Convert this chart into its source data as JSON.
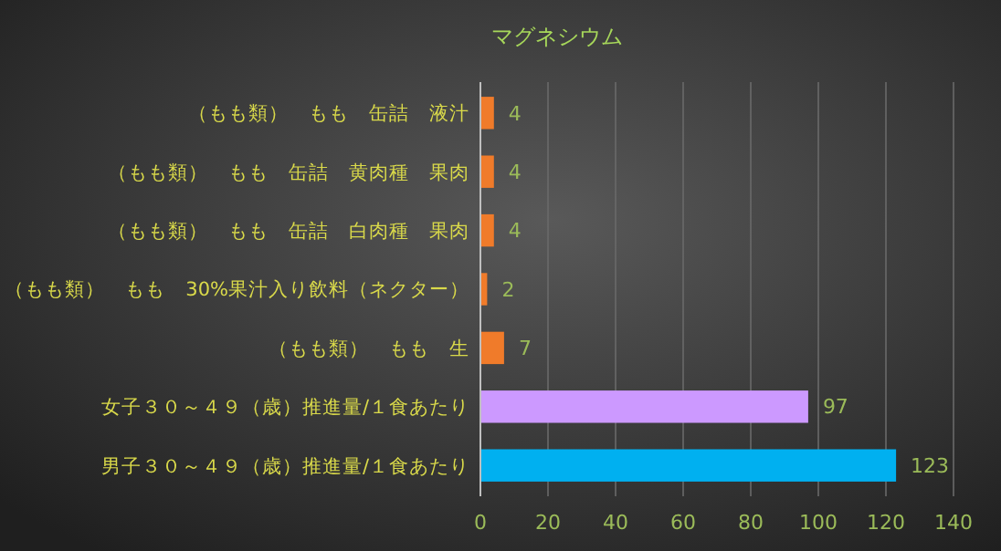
{
  "chart_data": {
    "type": "bar",
    "orientation": "horizontal",
    "title": "マグネシウム",
    "categories": [
      "（もも類）　もも　缶詰　液汁",
      "（もも類）　もも　缶詰　黄肉種　果肉",
      "（もも類）　もも　缶詰　白肉種　果肉",
      "（もも類）　もも　30%果汁入り飲料（ネクター）",
      "（もも類）　もも　生",
      "女子３０～４９（歳）推進量/１食あたり",
      "男子３０～４９（歳）推進量/１食あたり"
    ],
    "values": [
      4,
      4,
      4,
      2,
      7,
      97,
      123
    ],
    "colors": [
      "#f07b2a",
      "#f07b2a",
      "#f07b2a",
      "#f07b2a",
      "#f07b2a",
      "#cc99ff",
      "#00b0f0"
    ],
    "xlim": [
      0,
      140
    ],
    "xticks": [
      0,
      20,
      40,
      60,
      80,
      100,
      120,
      140
    ],
    "grid": "x",
    "data_labels": true
  }
}
